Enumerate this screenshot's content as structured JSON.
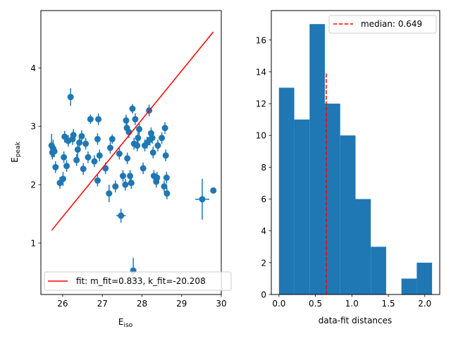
{
  "chart_data": [
    {
      "type": "scatter",
      "title": "",
      "xlabel": "E",
      "xlabel_sub": "iso",
      "ylabel": "E",
      "ylabel_sub": "peak",
      "xlim": [
        25.45,
        30.0
      ],
      "ylim": [
        0.12,
        4.98
      ],
      "x_ticks": [
        26,
        27,
        28,
        29,
        30
      ],
      "y_ticks": [
        1,
        2,
        3,
        4
      ],
      "x_tick_labels": [
        "26",
        "27",
        "28",
        "29",
        "30"
      ],
      "y_tick_labels": [
        "1",
        "2",
        "3",
        "4"
      ],
      "grid": false,
      "point_color": "#1f77b4",
      "fit_color": "#ff0000",
      "points": [
        {
          "x": 25.72,
          "y": 2.67,
          "yerr": 0.2
        },
        {
          "x": 25.74,
          "y": 2.55,
          "yerr": 0.12
        },
        {
          "x": 25.76,
          "y": 2.62,
          "yerr": 0.15
        },
        {
          "x": 25.79,
          "y": 2.57,
          "yerr": 0.1
        },
        {
          "x": 25.82,
          "y": 2.3,
          "yerr": 0.1
        },
        {
          "x": 25.93,
          "y": 2.03,
          "yerr": 0.1
        },
        {
          "x": 26.01,
          "y": 2.1,
          "yerr": 0.12
        },
        {
          "x": 26.03,
          "y": 2.47,
          "yerr": 0.1
        },
        {
          "x": 26.05,
          "y": 2.82,
          "yerr": 0.1
        },
        {
          "x": 26.1,
          "y": 2.32,
          "yerr": 0.1
        },
        {
          "x": 26.14,
          "y": 2.75,
          "yerr": 0.1
        },
        {
          "x": 26.2,
          "y": 3.5,
          "yerr": 0.15
        },
        {
          "x": 26.25,
          "y": 2.78,
          "yerr": 0.1
        },
        {
          "x": 26.27,
          "y": 2.85,
          "yerr": 0.1
        },
        {
          "x": 26.35,
          "y": 2.42,
          "yerr": 0.1
        },
        {
          "x": 26.38,
          "y": 2.6,
          "yerr": 0.15
        },
        {
          "x": 26.42,
          "y": 2.72,
          "yerr": 0.1
        },
        {
          "x": 26.48,
          "y": 2.83,
          "yerr": 0.1
        },
        {
          "x": 26.52,
          "y": 2.27,
          "yerr": 0.1
        },
        {
          "x": 26.58,
          "y": 2.7,
          "yerr": 0.1
        },
        {
          "x": 26.64,
          "y": 2.47,
          "yerr": 0.1
        },
        {
          "x": 26.7,
          "y": 3.12,
          "yerr": 0.08
        },
        {
          "x": 26.8,
          "y": 2.4,
          "yerr": 0.1
        },
        {
          "x": 26.88,
          "y": 2.78,
          "yerr": 0.1
        },
        {
          "x": 26.88,
          "y": 2.07,
          "yerr": 0.1
        },
        {
          "x": 26.9,
          "y": 3.12,
          "yerr": 0.1
        },
        {
          "x": 26.93,
          "y": 2.5,
          "yerr": 0.1
        },
        {
          "x": 27.08,
          "y": 2.28,
          "yerr": 0.1
        },
        {
          "x": 27.17,
          "y": 1.85,
          "yerr": 0.15
        },
        {
          "x": 27.2,
          "y": 2.63,
          "yerr": 0.1
        },
        {
          "x": 27.25,
          "y": 2.78,
          "yerr": 0.08
        },
        {
          "x": 27.33,
          "y": 1.97,
          "yerr": 0.1
        },
        {
          "x": 27.43,
          "y": 2.53,
          "yerr": 0.1
        },
        {
          "x": 27.47,
          "y": 1.47,
          "yerr": 0.12,
          "xerr": 0.12
        },
        {
          "x": 27.52,
          "y": 2.15,
          "yerr": 0.1
        },
        {
          "x": 27.58,
          "y": 2.0,
          "yerr": 0.1
        },
        {
          "x": 27.6,
          "y": 3.1,
          "yerr": 0.1
        },
        {
          "x": 27.62,
          "y": 2.97,
          "yerr": 0.1
        },
        {
          "x": 27.63,
          "y": 2.45,
          "yerr": 0.1
        },
        {
          "x": 27.67,
          "y": 2.9,
          "yerr": 0.1
        },
        {
          "x": 27.7,
          "y": 2.15,
          "yerr": 0.1
        },
        {
          "x": 27.73,
          "y": 2.03,
          "yerr": 0.1
        },
        {
          "x": 27.76,
          "y": 3.3,
          "yerr": 0.08
        },
        {
          "x": 27.78,
          "y": 0.53,
          "yerr": 0.22
        },
        {
          "x": 27.8,
          "y": 2.7,
          "yerr": 0.1
        },
        {
          "x": 27.83,
          "y": 3.12,
          "yerr": 0.1
        },
        {
          "x": 27.88,
          "y": 2.67,
          "yerr": 0.1
        },
        {
          "x": 27.9,
          "y": 2.8,
          "yerr": 0.1
        },
        {
          "x": 27.93,
          "y": 2.95,
          "yerr": 0.1
        },
        {
          "x": 28.03,
          "y": 2.28,
          "yerr": 0.1
        },
        {
          "x": 28.07,
          "y": 2.67,
          "yerr": 0.1
        },
        {
          "x": 28.13,
          "y": 2.72,
          "yerr": 0.1
        },
        {
          "x": 28.18,
          "y": 3.27,
          "yerr": 0.1
        },
        {
          "x": 28.2,
          "y": 2.77,
          "yerr": 0.1
        },
        {
          "x": 28.23,
          "y": 2.88,
          "yerr": 0.1
        },
        {
          "x": 28.26,
          "y": 2.8,
          "yerr": 0.1
        },
        {
          "x": 28.28,
          "y": 2.55,
          "yerr": 0.1
        },
        {
          "x": 28.3,
          "y": 2.15,
          "yerr": 0.1
        },
        {
          "x": 28.36,
          "y": 2.05,
          "yerr": 0.1
        },
        {
          "x": 28.38,
          "y": 2.12,
          "yerr": 0.1
        },
        {
          "x": 28.4,
          "y": 2.67,
          "yerr": 0.1
        },
        {
          "x": 28.5,
          "y": 2.8,
          "yerr": 0.1
        },
        {
          "x": 28.56,
          "y": 1.97,
          "yerr": 0.1
        },
        {
          "x": 28.58,
          "y": 2.97,
          "yerr": 0.1
        },
        {
          "x": 28.6,
          "y": 2.5,
          "yerr": 0.1
        },
        {
          "x": 28.62,
          "y": 2.12,
          "yerr": 0.1
        },
        {
          "x": 28.63,
          "y": 1.85,
          "yerr": 0.1
        },
        {
          "x": 29.52,
          "y": 1.75,
          "yerr": 0.35,
          "xerr": 0.18
        },
        {
          "x": 29.8,
          "y": 1.9,
          "yerr": 0.05
        }
      ],
      "fit_line": {
        "m_fit": 0.833,
        "k_fit": -20.208,
        "x_range": [
          25.72,
          29.8
        ]
      },
      "legend": {
        "label": "fit: m_fit=0.833, k_fit=-20.208",
        "placement": "lower-left"
      }
    },
    {
      "type": "histogram",
      "title": "",
      "xlabel": "data-fit distances",
      "ylabel": "",
      "xlim": [
        -0.105,
        2.205
      ],
      "ylim": [
        0,
        17.85
      ],
      "x_ticks": [
        0.0,
        0.5,
        1.0,
        1.5,
        2.0
      ],
      "y_ticks": [
        0,
        2,
        4,
        6,
        8,
        10,
        12,
        14,
        16
      ],
      "x_tick_labels": [
        "0.0",
        "0.5",
        "1.0",
        "1.5",
        "2.0"
      ],
      "y_tick_labels": [
        "0",
        "2",
        "4",
        "6",
        "8",
        "10",
        "12",
        "14",
        "16"
      ],
      "grid": false,
      "bar_color": "#1f77b4",
      "median_color": "#ff0000",
      "bin_edges": [
        0.0,
        0.21,
        0.42,
        0.63,
        0.84,
        1.05,
        1.26,
        1.47,
        1.68,
        1.89,
        2.1
      ],
      "counts": [
        13,
        11,
        17,
        12,
        10,
        6,
        3,
        0,
        1,
        2
      ],
      "median": 0.649,
      "median_line_top": 14,
      "legend": {
        "label": "median: 0.649",
        "placement": "top-right"
      }
    }
  ]
}
